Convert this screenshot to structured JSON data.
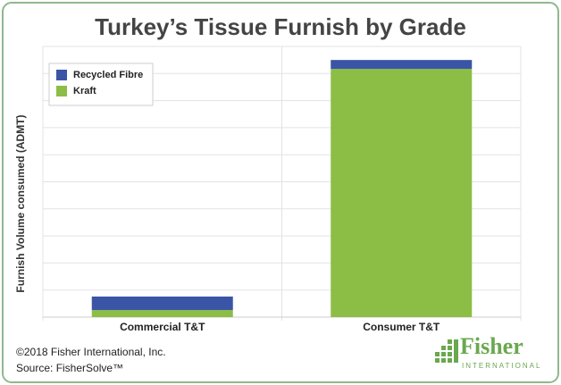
{
  "chart_data": {
    "type": "stacked_bar",
    "title": "Turkey’s Tissue Furnish by Grade",
    "y_label": "Furnish Volume consumed (ADMT)",
    "categories": [
      "Commercial T&T",
      "Consumer T&T"
    ],
    "series": [
      {
        "name": "Kraft",
        "color": "#8cbd45",
        "values": [
          0.26,
          9.17
        ]
      },
      {
        "name": "Recycled Fibre",
        "color": "#3a55a6",
        "values": [
          0.5,
          0.33
        ]
      }
    ],
    "ylim": [
      0,
      10
    ],
    "grid": true,
    "legend": "top-left"
  },
  "footer": {
    "copyright": "©2018 Fisher International, Inc.",
    "source": "Source: FisherSolve™"
  },
  "logo": {
    "name": "Fisher",
    "sub": "INTERNATIONAL"
  }
}
